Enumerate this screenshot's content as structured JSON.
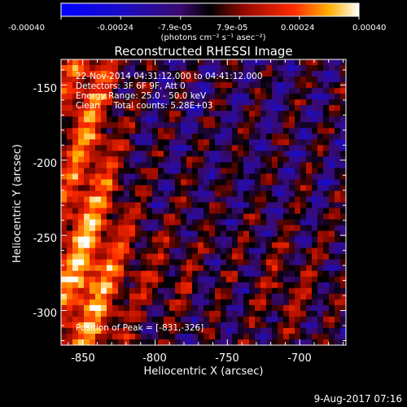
{
  "chart_data": {
    "type": "heatmap",
    "title": "Reconstructed RHESSI Image",
    "xlabel": "Heliocentric X (arcsec)",
    "ylabel": "Heliocentric Y (arcsec)",
    "xlim": [
      -865,
      -668
    ],
    "ylim": [
      -323,
      -133
    ],
    "xticks": [
      -850,
      -800,
      -750,
      -700
    ],
    "yticks": [
      -150,
      -200,
      -250,
      -300
    ],
    "colorbar": {
      "range": [
        -0.0004,
        0.0004
      ],
      "tick_values": [
        -0.0004,
        -0.00024,
        -7.9e-05,
        7.9e-05,
        0.00024,
        0.0004
      ],
      "tick_labels": [
        "-0.00040",
        "-0.00024",
        "-7.9e-05",
        "7.9e-05",
        "0.00024",
        "0.00040"
      ],
      "unit_label": "(photons cm⁻² s⁻¹ asec⁻²)"
    },
    "annotations": [
      "22-Nov-2014 04:31:12.000 to 04:41:12.000",
      "Detectors: 3F 6F 9F, Att 0",
      "Energy Range: 25.0 - 50.0 keV",
      "Clean     Total counts: 5.28E+03"
    ],
    "peak_label": "Position of Peak = [-831,-326]",
    "peak_position": [
      -831,
      -326
    ],
    "timestamp": "9-Aug-2017 07:16",
    "grid": false
  }
}
